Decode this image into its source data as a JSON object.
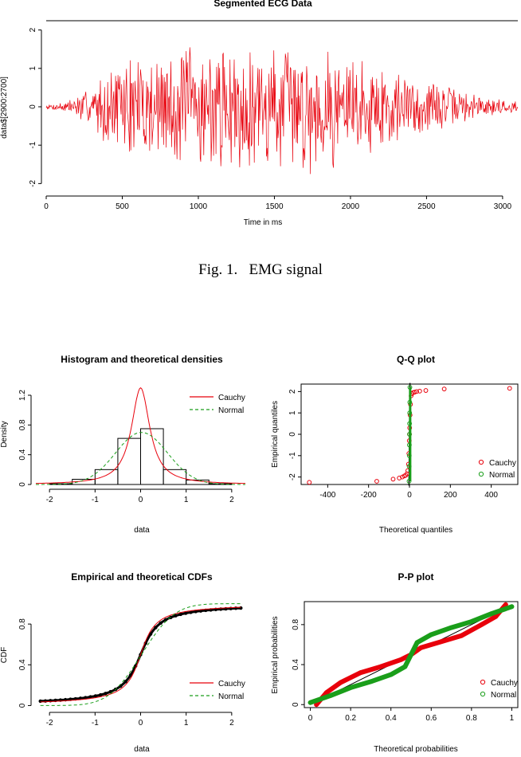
{
  "figure1": {
    "caption_label": "Fig. 1.",
    "caption_text": "EMG signal"
  },
  "chart_data": [
    {
      "id": "ecg",
      "type": "line",
      "title": "Segmented ECG Data",
      "xlabel": "Time in ms",
      "ylabel": "data$[2900:2700]",
      "xlim": [
        0,
        3100
      ],
      "ylim": [
        -2.2,
        2.2
      ],
      "x_ticks": [
        0,
        500,
        1000,
        1500,
        2000,
        2500,
        3000
      ],
      "y_ticks": [
        -2,
        -1,
        0,
        1,
        2
      ],
      "series": [
        {
          "color": "#e8000b",
          "sample_count": 3100,
          "envelope_x": [
            0,
            150,
            300,
            500,
            700,
            900,
            1100,
            1300,
            1500,
            1700,
            1900,
            2100,
            2300,
            2500,
            2700,
            2900,
            3100
          ],
          "envelope_amp": [
            0.05,
            0.2,
            0.6,
            1.4,
            1.6,
            1.8,
            1.7,
            1.7,
            1.8,
            1.8,
            1.7,
            1.4,
            1.1,
            0.8,
            0.5,
            0.3,
            0.15
          ]
        }
      ]
    },
    {
      "id": "histogram",
      "type": "bar",
      "title": "Histogram and theoretical densities",
      "xlabel": "data",
      "ylabel": "Density",
      "xlim": [
        -2.3,
        2.3
      ],
      "ylim": [
        0,
        1.35
      ],
      "x_ticks": [
        -2,
        -1,
        0,
        1,
        2
      ],
      "y_ticks": [
        0.0,
        0.4,
        0.8,
        1.2
      ],
      "bins": [
        {
          "from": -2.0,
          "to": -1.5,
          "value": 0.01
        },
        {
          "from": -1.5,
          "to": -1.0,
          "value": 0.07
        },
        {
          "from": -1.0,
          "to": -0.5,
          "value": 0.2
        },
        {
          "from": -0.5,
          "to": 0.0,
          "value": 0.62
        },
        {
          "from": 0.0,
          "to": 0.5,
          "value": 0.75
        },
        {
          "from": 0.5,
          "to": 1.0,
          "value": 0.2
        },
        {
          "from": 1.0,
          "to": 1.5,
          "value": 0.06
        },
        {
          "from": 1.5,
          "to": 2.0,
          "value": 0.01
        }
      ],
      "series": [
        {
          "name": "Cauchy",
          "color": "#e8000b",
          "dash": "solid",
          "location": 0.0,
          "scale": 0.245
        },
        {
          "name": "Normal",
          "color": "#1a9e1a",
          "dash": "dashed",
          "mean": 0.02,
          "sd": 0.57
        }
      ],
      "legend": "top-right"
    },
    {
      "id": "qq",
      "type": "scatter",
      "title": "Q-Q plot",
      "xlabel": "Theoretical quantiles",
      "ylabel": "Empirical quantiles",
      "xlim": [
        -530,
        530
      ],
      "ylim": [
        -2.35,
        2.35
      ],
      "x_ticks": [
        -400,
        -200,
        0,
        200,
        400
      ],
      "y_ticks": [
        -2,
        -1,
        0,
        1,
        2
      ],
      "series": [
        {
          "name": "Cauchy",
          "color": "#e8000b",
          "points": [
            [
              -490,
              -2.25
            ],
            [
              -160,
              -2.2
            ],
            [
              -80,
              -2.1
            ],
            [
              -50,
              -2.05
            ],
            [
              -35,
              -2.0
            ],
            [
              -25,
              -1.95
            ],
            [
              -18,
              -1.92
            ],
            [
              -12,
              -1.85
            ],
            [
              -8,
              -1.7
            ],
            [
              -5,
              -1.4
            ],
            [
              -3,
              -0.9
            ],
            [
              -1,
              -0.3
            ],
            [
              0,
              0
            ],
            [
              1,
              0.3
            ],
            [
              3,
              0.9
            ],
            [
              5,
              1.4
            ],
            [
              8,
              1.8
            ],
            [
              12,
              1.9
            ],
            [
              18,
              1.95
            ],
            [
              25,
              1.97
            ],
            [
              35,
              2.0
            ],
            [
              50,
              2.02
            ],
            [
              80,
              2.05
            ],
            [
              170,
              2.12
            ],
            [
              490,
              2.15
            ]
          ]
        },
        {
          "name": "Normal",
          "color": "#1a9e1a",
          "points": [
            [
              -2.1,
              -2.2
            ],
            [
              -1.5,
              -1.5
            ],
            [
              -1,
              -1
            ],
            [
              -0.5,
              -0.5
            ],
            [
              0,
              0
            ],
            [
              0.5,
              0.5
            ],
            [
              1,
              1
            ],
            [
              1.5,
              1.5
            ],
            [
              2.1,
              2.2
            ]
          ]
        }
      ],
      "legend": "bottom-right"
    },
    {
      "id": "cdf",
      "type": "line",
      "title": "Empirical and theoretical CDFs",
      "xlabel": "data",
      "ylabel": "CDF",
      "xlim": [
        -2.3,
        2.3
      ],
      "ylim": [
        -0.02,
        1.02
      ],
      "x_ticks": [
        -2,
        -1,
        0,
        1,
        2
      ],
      "y_ticks": [
        0.0,
        0.4,
        0.8
      ],
      "series": [
        {
          "name": "Cauchy",
          "color": "#e8000b",
          "dash": "solid",
          "location": 0.0,
          "scale": 0.245
        },
        {
          "name": "Normal",
          "color": "#1a9e1a",
          "dash": "dashed",
          "mean": 0.02,
          "sd": 0.57
        }
      ],
      "legend": "bottom-right"
    },
    {
      "id": "pp",
      "type": "scatter",
      "title": "P-P plot",
      "xlabel": "Theoretical probabilities",
      "ylabel": "Empirical probabilities",
      "xlim": [
        -0.03,
        1.03
      ],
      "ylim": [
        -0.03,
        1.03
      ],
      "x_ticks": [
        0.0,
        0.2,
        0.4,
        0.6,
        0.8,
        1.0
      ],
      "y_ticks": [
        0.0,
        0.4,
        0.8
      ],
      "series": [
        {
          "name": "Cauchy",
          "color": "#e8000b",
          "points": [
            [
              0.03,
              0.0
            ],
            [
              0.08,
              0.12
            ],
            [
              0.15,
              0.22
            ],
            [
              0.25,
              0.32
            ],
            [
              0.35,
              0.38
            ],
            [
              0.45,
              0.45
            ],
            [
              0.5,
              0.5
            ],
            [
              0.55,
              0.57
            ],
            [
              0.65,
              0.63
            ],
            [
              0.75,
              0.69
            ],
            [
              0.85,
              0.8
            ],
            [
              0.92,
              0.88
            ],
            [
              0.97,
              1.0
            ]
          ]
        },
        {
          "name": "Normal",
          "color": "#1a9e1a",
          "points": [
            [
              0.0,
              0.02
            ],
            [
              0.1,
              0.09
            ],
            [
              0.2,
              0.17
            ],
            [
              0.3,
              0.23
            ],
            [
              0.4,
              0.3
            ],
            [
              0.47,
              0.38
            ],
            [
              0.5,
              0.5
            ],
            [
              0.53,
              0.62
            ],
            [
              0.6,
              0.7
            ],
            [
              0.7,
              0.77
            ],
            [
              0.8,
              0.83
            ],
            [
              0.9,
              0.91
            ],
            [
              1.0,
              0.98
            ]
          ]
        }
      ],
      "legend": "bottom-right"
    }
  ]
}
